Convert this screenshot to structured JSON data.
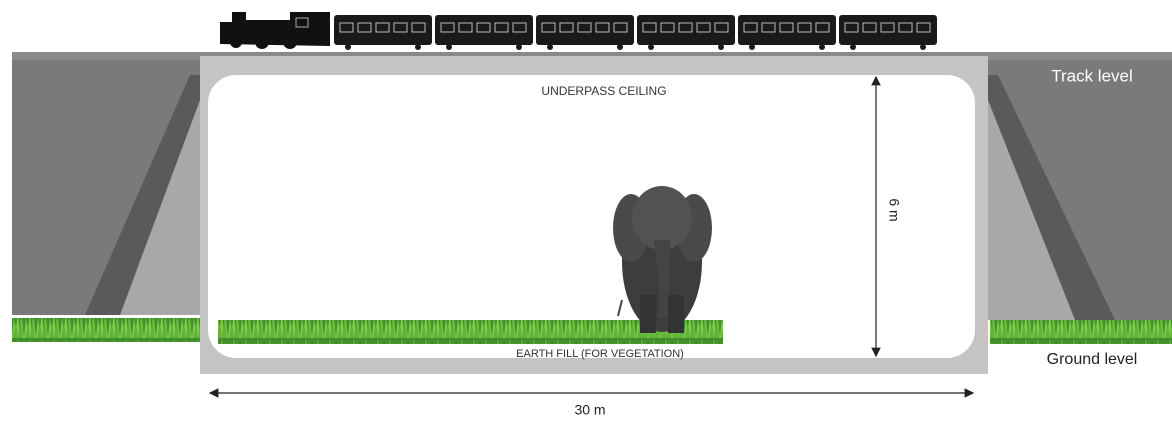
{
  "labels": {
    "ceiling": "UNDERPASS CEILING",
    "earth_fill": "EARTH FILL (FOR VEGETATION)",
    "height": "6 m",
    "width": "30 m",
    "track_level": "Track level",
    "ground_level": "Ground level"
  }
}
